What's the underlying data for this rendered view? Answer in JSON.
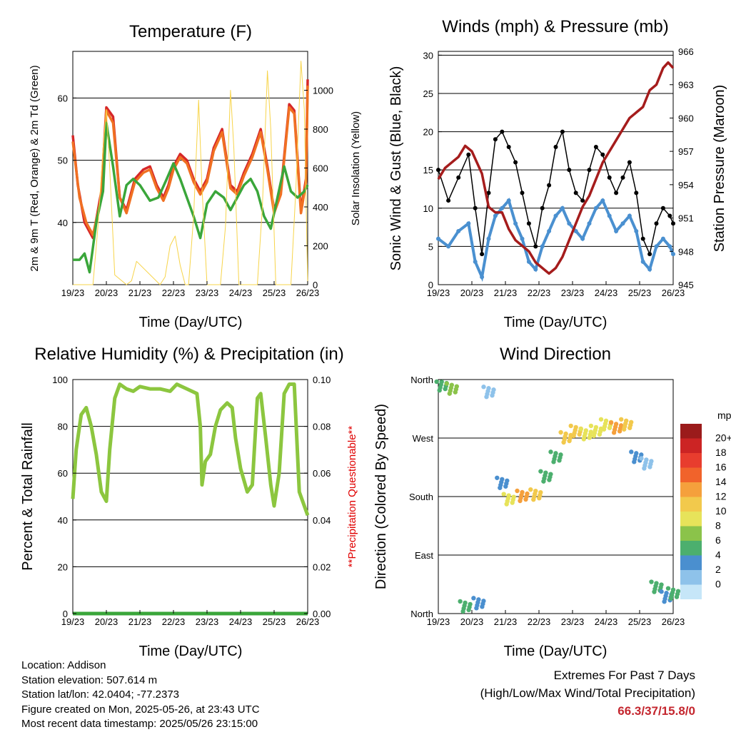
{
  "chart_data": [
    {
      "type": "line",
      "title": "Temperature (F)",
      "xlabel": "Time (Day/UTC)",
      "ylabel": "2m & 9m T (Red, Orange) & 2m Td (Green)",
      "ylabel_right": "Solar Insolation (Yellow)",
      "x_ticks": [
        "19/23",
        "20/23",
        "21/23",
        "22/23",
        "23/23",
        "24/23",
        "25/23",
        "26/23"
      ],
      "y_ticks": [
        "40",
        "50",
        "60"
      ],
      "y_right_ticks": [
        "0",
        "200",
        "400",
        "600",
        "800",
        "1000"
      ],
      "ylim": [
        30,
        67.5
      ],
      "ylim_right": [
        0,
        1200
      ],
      "grid": true,
      "series": [
        {
          "name": "2m T",
          "color": "#d62728",
          "axis": "left",
          "x": [
            0,
            0.15,
            0.35,
            0.6,
            0.85,
            1.0,
            1.2,
            1.4,
            1.6,
            1.85,
            2.1,
            2.3,
            2.5,
            2.7,
            2.85,
            3.0,
            3.2,
            3.4,
            3.6,
            3.8,
            4.0,
            4.2,
            4.45,
            4.7,
            4.9,
            5.1,
            5.35,
            5.6,
            5.8,
            6.0,
            6.2,
            6.45,
            6.6,
            6.8,
            6.95,
            7.0
          ],
          "y": [
            54,
            46,
            40,
            37.5,
            45,
            58.5,
            57,
            44,
            42,
            47,
            48.5,
            49,
            46,
            44,
            46,
            49,
            51,
            50,
            47,
            45,
            47,
            52,
            55,
            46,
            45,
            48,
            51,
            55,
            49,
            42,
            45,
            59,
            58,
            42,
            47,
            63
          ]
        },
        {
          "name": "9m T",
          "color": "#f07022",
          "axis": "left",
          "x": [
            0,
            0.2,
            0.4,
            0.6,
            0.85,
            1.0,
            1.2,
            1.4,
            1.6,
            1.85,
            2.1,
            2.3,
            2.5,
            2.7,
            2.85,
            3.0,
            3.2,
            3.4,
            3.6,
            3.8,
            4.0,
            4.2,
            4.45,
            4.7,
            4.9,
            5.1,
            5.35,
            5.6,
            5.8,
            6.0,
            6.2,
            6.45,
            6.6,
            6.8,
            6.95,
            7.0
          ],
          "y": [
            53,
            44,
            40,
            38,
            44,
            58,
            56,
            44,
            41.5,
            46.5,
            48,
            48.5,
            45.5,
            43.5,
            45.5,
            48.5,
            50.5,
            49.5,
            46.5,
            44.5,
            46.5,
            51.5,
            54.5,
            45.5,
            44.5,
            47.5,
            50.5,
            54.5,
            48.5,
            41.5,
            44.5,
            58.5,
            57.5,
            41.5,
            46.5,
            62
          ]
        },
        {
          "name": "2m Td",
          "color": "#3aa63a",
          "axis": "left",
          "x": [
            0,
            0.2,
            0.35,
            0.5,
            0.7,
            0.9,
            1.0,
            1.2,
            1.4,
            1.6,
            1.8,
            2.0,
            2.3,
            2.55,
            2.8,
            3.0,
            3.2,
            3.4,
            3.6,
            3.8,
            4.0,
            4.25,
            4.5,
            4.7,
            4.9,
            5.1,
            5.3,
            5.5,
            5.7,
            5.9,
            6.1,
            6.3,
            6.5,
            6.7,
            6.9,
            7.0
          ],
          "y": [
            34,
            34,
            35,
            32,
            40,
            45,
            56,
            49,
            41,
            46,
            47,
            46,
            43.5,
            44,
            47,
            49.5,
            47,
            44,
            41,
            37.5,
            43,
            45,
            44,
            42,
            44,
            46,
            47,
            45,
            41,
            39,
            44,
            49,
            45,
            44,
            45,
            46
          ]
        },
        {
          "name": "Solar Insolation",
          "color": "#f7d44a",
          "axis": "right",
          "x": [
            0,
            0.6,
            0.75,
            0.9,
            1.0,
            1.1,
            1.25,
            1.6,
            1.75,
            1.9,
            2.6,
            2.75,
            2.9,
            3.05,
            3.2,
            3.35,
            3.45,
            3.6,
            3.75,
            3.85,
            4.0,
            4.4,
            4.55,
            4.7,
            4.8,
            4.95,
            5.5,
            5.65,
            5.8,
            5.9,
            6.05,
            6.5,
            6.65,
            6.8,
            6.9,
            7.0
          ],
          "y": [
            0,
            0,
            300,
            700,
            900,
            600,
            50,
            0,
            20,
            120,
            0,
            40,
            200,
            250,
            100,
            0,
            0,
            350,
            950,
            500,
            0,
            0,
            300,
            1000,
            700,
            0,
            0,
            400,
            1100,
            800,
            0,
            0,
            500,
            1150,
            900,
            0
          ]
        }
      ]
    },
    {
      "type": "scatter",
      "title": "Winds (mph) & Pressure (mb)",
      "xlabel": "Time (Day/UTC)",
      "ylabel": "Sonic Wind & Gust (Blue, Black)",
      "ylabel_right": "Station Pressure (Maroon)",
      "x_ticks": [
        "19/23",
        "20/23",
        "21/23",
        "22/23",
        "23/23",
        "24/23",
        "25/23",
        "26/23"
      ],
      "y_ticks": [
        "0",
        "5",
        "10",
        "15",
        "20",
        "25",
        "30"
      ],
      "y_right_ticks": [
        "945",
        "948",
        "951",
        "954",
        "957",
        "960",
        "963",
        "966"
      ],
      "ylim": [
        0,
        30.5
      ],
      "ylim_right": [
        945,
        966
      ],
      "grid": true,
      "series": [
        {
          "name": "Sonic Wind",
          "color": "#4a90d0",
          "axis": "left",
          "x": [
            0,
            0.3,
            0.6,
            0.9,
            1.1,
            1.3,
            1.5,
            1.7,
            1.9,
            2.1,
            2.3,
            2.5,
            2.7,
            2.9,
            3.1,
            3.3,
            3.5,
            3.7,
            3.9,
            4.1,
            4.3,
            4.5,
            4.7,
            4.9,
            5.1,
            5.3,
            5.5,
            5.7,
            5.9,
            6.1,
            6.3,
            6.5,
            6.7,
            6.9,
            7.0
          ],
          "y": [
            6,
            5,
            7,
            8,
            3,
            1,
            6,
            9,
            10,
            11,
            8,
            6,
            3,
            2,
            5,
            7,
            9,
            10,
            8,
            7,
            6,
            8,
            10,
            11,
            9,
            7,
            8,
            9,
            7,
            3,
            2,
            5,
            6,
            5,
            4
          ]
        },
        {
          "name": "Gust",
          "color": "#000000",
          "axis": "left",
          "x": [
            0,
            0.3,
            0.6,
            0.9,
            1.1,
            1.3,
            1.5,
            1.7,
            1.9,
            2.1,
            2.3,
            2.5,
            2.7,
            2.9,
            3.1,
            3.3,
            3.5,
            3.7,
            3.9,
            4.1,
            4.3,
            4.5,
            4.7,
            4.9,
            5.1,
            5.3,
            5.5,
            5.7,
            5.9,
            6.1,
            6.3,
            6.5,
            6.7,
            6.9,
            7.0
          ],
          "y": [
            15,
            11,
            14,
            17,
            10,
            4,
            12,
            19,
            20,
            18,
            16,
            12,
            8,
            5,
            10,
            13,
            18,
            20,
            15,
            12,
            11,
            15,
            18,
            17,
            14,
            12,
            14,
            16,
            12,
            6,
            4,
            8,
            10,
            9,
            8
          ]
        },
        {
          "name": "Station Pressure",
          "color": "#a51c1c",
          "axis": "right",
          "x": [
            0,
            0.2,
            0.4,
            0.6,
            0.8,
            1.0,
            1.3,
            1.5,
            1.7,
            1.9,
            2.1,
            2.3,
            2.5,
            2.7,
            2.9,
            3.1,
            3.3,
            3.5,
            3.7,
            3.9,
            4.1,
            4.3,
            4.5,
            4.7,
            4.9,
            5.1,
            5.3,
            5.5,
            5.7,
            5.9,
            6.1,
            6.3,
            6.5,
            6.7,
            6.85,
            7.0
          ],
          "y": [
            954.5,
            955.5,
            956,
            956.5,
            957.5,
            957,
            955,
            952,
            951.5,
            951.5,
            950,
            949,
            948.5,
            948,
            947,
            946.5,
            946,
            946.5,
            947.5,
            949,
            950.5,
            952,
            953,
            954.5,
            956,
            957,
            958,
            959,
            960,
            960.5,
            961,
            962.5,
            963,
            964.5,
            965,
            964.5
          ]
        }
      ]
    },
    {
      "type": "line",
      "title": "Relative Humidity (%) & Precipitation (in)",
      "xlabel": "Time (Day/UTC)",
      "ylabel": "Percent & Total Rainfall",
      "ylabel_right": "**Precipitation Questionable**",
      "x_ticks": [
        "19/23",
        "20/23",
        "21/23",
        "22/23",
        "23/23",
        "24/23",
        "25/23",
        "26/23"
      ],
      "y_ticks": [
        "0",
        "20",
        "40",
        "60",
        "80",
        "100"
      ],
      "y_right_ticks": [
        "0.00",
        "0.02",
        "0.04",
        "0.06",
        "0.08",
        "0.10"
      ],
      "ylim": [
        0,
        100
      ],
      "ylim_right": [
        0,
        0.1
      ],
      "grid": true,
      "series": [
        {
          "name": "Relative Humidity",
          "color": "#8cc63f",
          "axis": "left",
          "x": [
            0,
            0.1,
            0.25,
            0.4,
            0.55,
            0.7,
            0.85,
            1.0,
            1.1,
            1.25,
            1.4,
            1.6,
            1.8,
            2.0,
            2.3,
            2.6,
            2.9,
            3.1,
            3.4,
            3.7,
            3.8,
            3.85,
            3.95,
            4.1,
            4.25,
            4.4,
            4.6,
            4.75,
            4.85,
            5.0,
            5.2,
            5.35,
            5.5,
            5.6,
            5.75,
            5.9,
            6.0,
            6.15,
            6.3,
            6.45,
            6.6,
            6.75,
            6.9,
            7.0
          ],
          "y": [
            49,
            70,
            85,
            88,
            80,
            68,
            52,
            48,
            70,
            92,
            98,
            96,
            95,
            97,
            96,
            96,
            95,
            98,
            96,
            94,
            80,
            55,
            65,
            68,
            80,
            87,
            90,
            88,
            75,
            62,
            52,
            55,
            92,
            94,
            75,
            55,
            46,
            60,
            94,
            98,
            98,
            52,
            46,
            42
          ]
        },
        {
          "name": "Total Precipitation",
          "color": "#3aa63a",
          "axis": "right",
          "x": [
            0,
            7
          ],
          "y": [
            0,
            0
          ]
        }
      ]
    },
    {
      "type": "scatter",
      "title": "Wind Direction",
      "xlabel": "Time (Day/UTC)",
      "ylabel": "Direction (Colored By Speed)",
      "x_ticks": [
        "19/23",
        "20/23",
        "21/23",
        "22/23",
        "23/23",
        "24/23",
        "25/23",
        "26/23"
      ],
      "y_ticks": [
        "North",
        "East",
        "South",
        "West",
        "North"
      ],
      "ylim": [
        0,
        360
      ],
      "grid": true,
      "legend": {
        "title": "mph",
        "labels": [
          "20+",
          "18",
          "16",
          "14",
          "12",
          "10",
          "8",
          "6",
          "4",
          "2",
          "0"
        ],
        "colors": [
          "#9b1b1b",
          "#cc2424",
          "#e83d2e",
          "#f1632b",
          "#f5a03c",
          "#f2c94c",
          "#e7e35a",
          "#8bc34a",
          "#4caf6e",
          "#4a8fcf",
          "#8ec2ea",
          "#c6e6f8"
        ]
      },
      "series": [
        {
          "name": "Direction",
          "axis": "left",
          "x": [
            0.1,
            0.4,
            0.8,
            1.2,
            1.5,
            1.9,
            2.1,
            2.5,
            2.9,
            3.2,
            3.5,
            3.8,
            4.1,
            4.4,
            4.7,
            5.0,
            5.3,
            5.6,
            5.9,
            6.2,
            6.5,
            6.8,
            7.0
          ],
          "y": [
            350,
            345,
            10,
            15,
            340,
            200,
            175,
            180,
            182,
            210,
            240,
            270,
            280,
            275,
            280,
            290,
            285,
            290,
            240,
            230,
            40,
            25,
            30
          ],
          "speed": [
            6,
            8,
            6,
            4,
            2,
            3,
            10,
            14,
            12,
            6,
            6,
            12,
            12,
            10,
            10,
            10,
            14,
            12,
            4,
            2,
            6,
            4,
            6
          ]
        }
      ]
    }
  ],
  "footer": {
    "location": "Location: Addison",
    "elevation": "Station elevation: 507.614 m",
    "latlon": "Station lat/lon: 42.0404; -77.2373",
    "created": "Figure created on Mon, 2025-05-26, at 23:43 UTC",
    "recent": "Most recent data timestamp: 2025/05/26 23:15:00",
    "extremes_title": "Extremes For Past 7 Days",
    "extremes_sub": "(High/Low/Max Wind/Total Precipitation)",
    "extremes_value": "66.3/37/15.8/0"
  }
}
